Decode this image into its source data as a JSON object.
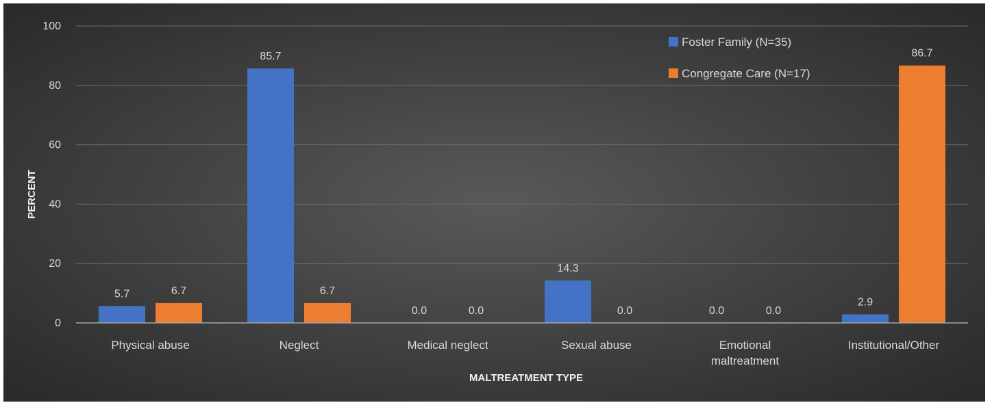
{
  "chart_data": {
    "type": "bar",
    "title": "",
    "xlabel": "MALTREATMENT TYPE",
    "ylabel": "PERCENT",
    "ylim": [
      0,
      100
    ],
    "yticks": [
      0,
      20,
      40,
      60,
      80,
      100
    ],
    "grid": true,
    "legend_position": "top-right",
    "categories": [
      [
        "Physical abuse"
      ],
      [
        "Neglect"
      ],
      [
        "Medical neglect"
      ],
      [
        "Sexual abuse"
      ],
      [
        "Emotional",
        "maltreatment"
      ],
      [
        "Institutional/Other"
      ]
    ],
    "series": [
      {
        "name": "Foster Family (N=35)",
        "color": "#4472C4",
        "values": [
          5.7,
          85.7,
          0.0,
          14.3,
          0.0,
          2.9
        ],
        "labels": [
          "5.7",
          "85.7",
          "0.0",
          "14.3",
          "0.0",
          "2.9"
        ]
      },
      {
        "name": "Congregate Care (N=17)",
        "color": "#ED7D31",
        "values": [
          6.7,
          6.7,
          0.0,
          0.0,
          0.0,
          86.7
        ],
        "labels": [
          "6.7",
          "6.7",
          "0.0",
          "0.0",
          "0.0",
          "86.7"
        ]
      }
    ],
    "colors": {
      "background_center": "#595959",
      "background_edge": "#262626",
      "grid": "#6e6e6e",
      "axis": "#a6a6a6",
      "text": "#d9d9d9",
      "axis_title": "#f2f2f2"
    }
  }
}
